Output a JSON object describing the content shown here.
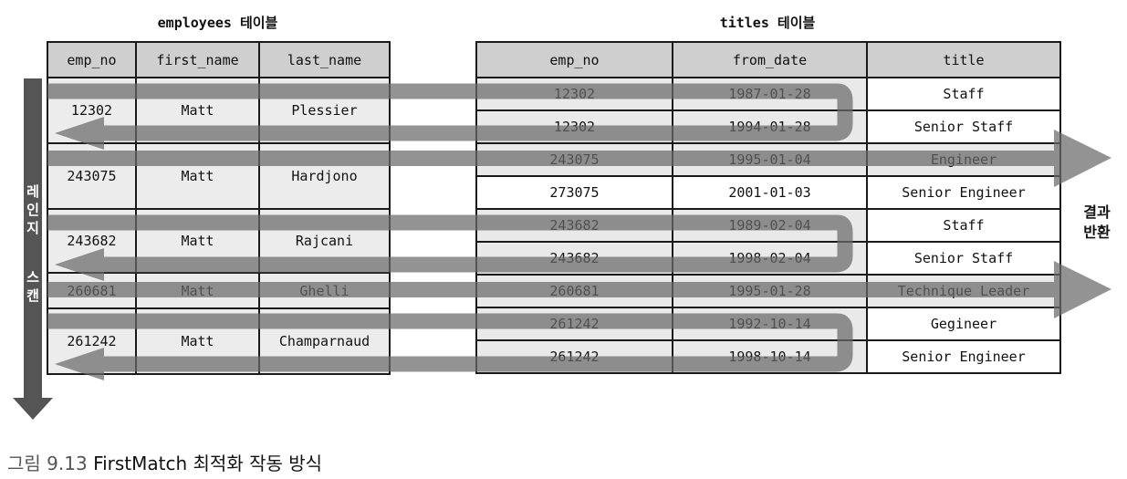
{
  "employees": {
    "title": "employees 테이블",
    "headers": [
      "emp_no",
      "first_name",
      "last_name"
    ],
    "rows": [
      {
        "emp_no": "12302",
        "first_name": "Matt",
        "last_name": "Plessier"
      },
      {
        "emp_no": "243075",
        "first_name": "Matt",
        "last_name": "Hardjono"
      },
      {
        "emp_no": "243682",
        "first_name": "Matt",
        "last_name": "Rajcani"
      },
      {
        "emp_no": "260681",
        "first_name": "Matt",
        "last_name": "Ghelli"
      },
      {
        "emp_no": "261242",
        "first_name": "Matt",
        "last_name": "Champarnaud"
      }
    ]
  },
  "titles": {
    "title": "titles 테이블",
    "headers": [
      "emp_no",
      "from_date",
      "title"
    ],
    "rows": [
      {
        "emp_no": "12302",
        "from_date": "1987-01-28",
        "title": "Staff"
      },
      {
        "emp_no": "12302",
        "from_date": "1994-01-28",
        "title": "Senior Staff"
      },
      {
        "emp_no": "243075",
        "from_date": "1995-01-04",
        "title": "Engineer"
      },
      {
        "emp_no": "273075",
        "from_date": "2001-01-03",
        "title": "Senior Engineer"
      },
      {
        "emp_no": "243682",
        "from_date": "1989-02-04",
        "title": "Staff"
      },
      {
        "emp_no": "243682",
        "from_date": "1998-02-04",
        "title": "Senior Staff"
      },
      {
        "emp_no": "260681",
        "from_date": "1995-01-28",
        "title": "Technique Leader"
      },
      {
        "emp_no": "261242",
        "from_date": "1992-10-14",
        "title": "Gegineer"
      },
      {
        "emp_no": "261242",
        "from_date": "1998-10-14",
        "title": "Senior Engineer"
      }
    ]
  },
  "labels": {
    "range_scan_chars": [
      "레",
      "인",
      "지",
      "스",
      "캔"
    ],
    "result_line1": "결과",
    "result_line2": "반환"
  },
  "caption": {
    "figure_no": "그림 9.13",
    "text": "FirstMatch 최적화 작동 방식"
  }
}
